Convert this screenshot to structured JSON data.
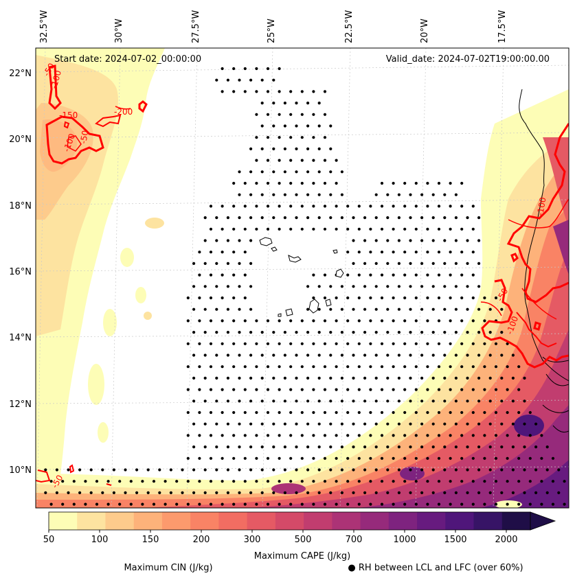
{
  "map": {
    "start_label": "Start date: 2024-07-02_00:00:00",
    "valid_label": "Valid_date: 2024-07-02T19:00:00.00",
    "lon_ticks": [
      "32.5°W",
      "30°W",
      "27.5°W",
      "25°W",
      "22.5°W",
      "20°W",
      "17.5°W"
    ],
    "lat_ticks": [
      "22°N",
      "20°N",
      "18°N",
      "16°N",
      "14°N",
      "12°N",
      "10°N"
    ],
    "cin_contour_labels": [
      "-50",
      "-150",
      "-100",
      "-200",
      "-100",
      "-50",
      "-100",
      "-100",
      "-50",
      "-50"
    ]
  },
  "colorbar": {
    "ticks": [
      "50",
      "100",
      "150",
      "200",
      "300",
      "500",
      "700",
      "1000",
      "1500",
      "2000"
    ],
    "label": "Maximum CAPE (J/kg)",
    "colors": [
      "#fdfdb6",
      "#fde3a0",
      "#fdcb8c",
      "#fdb27a",
      "#fc9a6d",
      "#f98365",
      "#f26d62",
      "#e55a64",
      "#d44a68",
      "#c13d6f",
      "#ac3376",
      "#962a7b",
      "#7e237f",
      "#671b7f",
      "#4f167a",
      "#371466",
      "#1f0e47"
    ]
  },
  "legend": {
    "cin_label": "Maximum CIN (J/kg)",
    "cin_color": "#ff0000",
    "rh_label": "● RH between LCL and LFC (over 60%)"
  }
}
